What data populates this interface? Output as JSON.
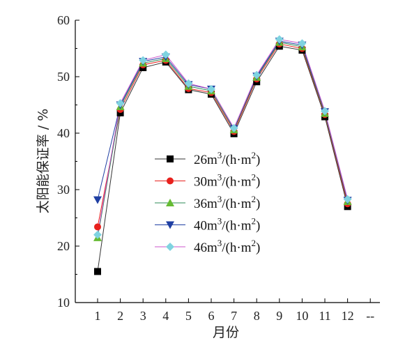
{
  "chart_data": {
    "type": "line",
    "title": "",
    "xlabel": "月份",
    "ylabel": "太阳能保证率 / %",
    "categories": [
      "1",
      "2",
      "3",
      "4",
      "5",
      "6",
      "7",
      "8",
      "9",
      "10",
      "11",
      "12"
    ],
    "x_extra_tick_label": "--",
    "ylim": [
      10,
      60
    ],
    "yticks": [
      10,
      20,
      30,
      40,
      50,
      60
    ],
    "grid": false,
    "legend_position": "center",
    "series": [
      {
        "name": "26m³/(h·m²)",
        "label_main": "26m",
        "label_sup1": "3",
        "label_mid": "/(h·m",
        "label_sup2": "2",
        "label_end": ")",
        "color": "#000000",
        "line_color": "#333333",
        "marker": "square",
        "values": [
          15.5,
          43.6,
          51.6,
          52.6,
          47.7,
          46.9,
          39.9,
          49.1,
          55.4,
          54.7,
          42.9,
          27.0
        ]
      },
      {
        "name": "30m³/(h·m²)",
        "label_main": "30m",
        "label_sup1": "3",
        "label_mid": "/(h·m",
        "label_sup2": "2",
        "label_end": ")",
        "color": "#e8201c",
        "line_color": "#e8201c",
        "marker": "circle",
        "values": [
          23.4,
          44.2,
          52.1,
          52.9,
          47.9,
          47.2,
          40.3,
          49.6,
          55.8,
          55.0,
          43.3,
          27.5
        ]
      },
      {
        "name": "36m³/(h·m²)",
        "label_main": "36m",
        "label_sup1": "3",
        "label_mid": "/(h·m",
        "label_sup2": "2",
        "label_end": ")",
        "color": "#66bb33",
        "line_color": "#2e8b57",
        "marker": "triangle-up",
        "values": [
          21.5,
          44.7,
          52.4,
          53.2,
          48.3,
          47.5,
          40.6,
          49.9,
          56.1,
          55.3,
          43.5,
          27.9
        ]
      },
      {
        "name": "40m³/(h·m²)",
        "label_main": "40m",
        "label_sup1": "3",
        "label_mid": "/(h·m",
        "label_sup2": "2",
        "label_end": ")",
        "color": "#1f3fa3",
        "line_color": "#1f3fa3",
        "marker": "triangle-down",
        "values": [
          28.2,
          45.0,
          52.7,
          53.5,
          48.6,
          47.8,
          40.8,
          50.1,
          56.3,
          55.6,
          43.8,
          28.1
        ]
      },
      {
        "name": "46m³/(h·m²)",
        "label_main": "46m",
        "label_sup1": "3",
        "label_mid": "/(h·m",
        "label_sup2": "2",
        "label_end": ")",
        "color": "#7fd3e0",
        "line_color": "#cc55cc",
        "marker": "diamond",
        "values": [
          22.0,
          45.3,
          52.9,
          53.9,
          48.8,
          47.8,
          40.9,
          50.3,
          56.6,
          55.9,
          43.9,
          28.3
        ]
      }
    ]
  }
}
